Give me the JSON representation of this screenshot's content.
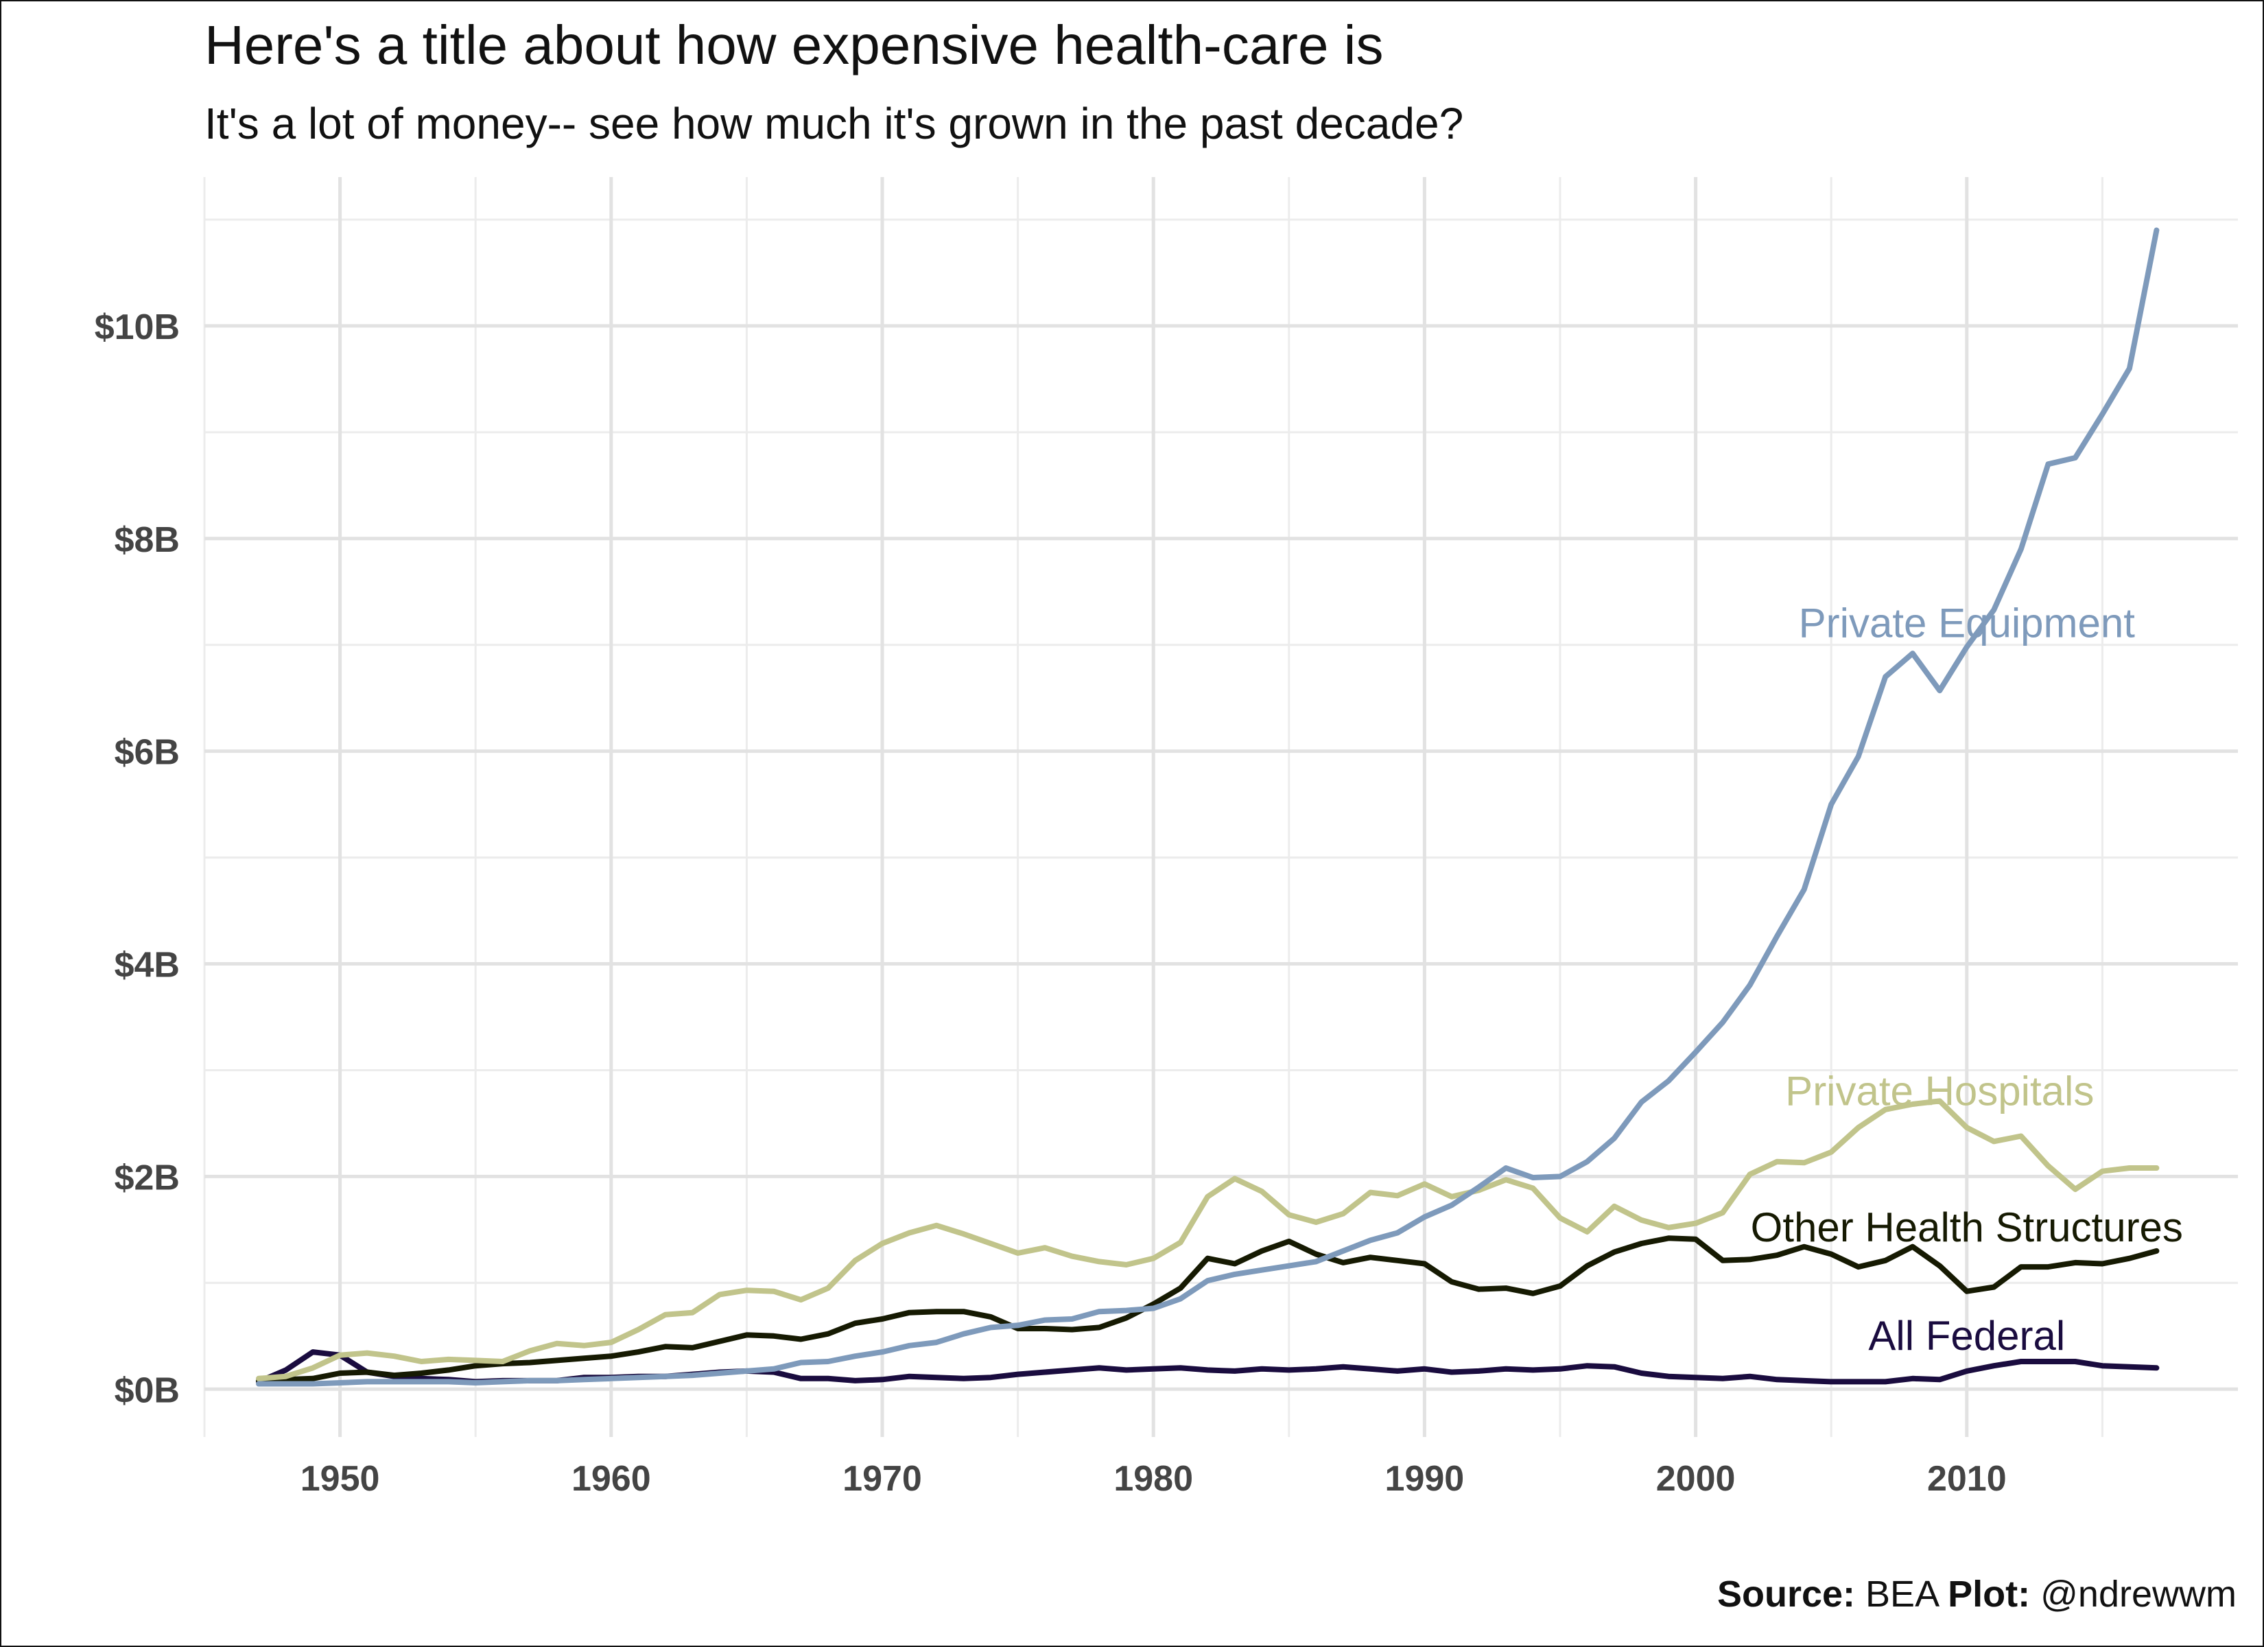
{
  "chart_data": {
    "type": "line",
    "title": "Here's a title about how expensive health-care is",
    "subtitle": "It's a lot of money-- see how much it's grown in the past decade?",
    "xlabel": "",
    "ylabel": "",
    "xlim": [
      1945,
      2020
    ],
    "ylim": [
      -0.45,
      11.4
    ],
    "x_ticks": [
      1950,
      1960,
      1970,
      1980,
      1990,
      2000,
      2010
    ],
    "y_ticks": [
      0,
      2,
      4,
      6,
      8,
      10
    ],
    "y_tick_labels": [
      "$0B",
      "$2B",
      "$4B",
      "$6B",
      "$8B",
      "$10B"
    ],
    "grid": true,
    "legend": "direct labels at line ends",
    "x": [
      1947,
      1948,
      1949,
      1950,
      1951,
      1952,
      1953,
      1954,
      1955,
      1956,
      1957,
      1958,
      1959,
      1960,
      1961,
      1962,
      1963,
      1964,
      1965,
      1966,
      1967,
      1968,
      1969,
      1970,
      1971,
      1972,
      1973,
      1974,
      1975,
      1976,
      1977,
      1978,
      1979,
      1980,
      1981,
      1982,
      1983,
      1984,
      1985,
      1986,
      1987,
      1988,
      1989,
      1990,
      1991,
      1992,
      1993,
      1994,
      1995,
      1996,
      1997,
      1998,
      1999,
      2000,
      2001,
      2002,
      2003,
      2004,
      2005,
      2006,
      2007,
      2008,
      2009,
      2010,
      2011,
      2012,
      2013,
      2014,
      2015,
      2016,
      2017
    ],
    "series": [
      {
        "name": "Private Equipment",
        "color": "#7e9abb",
        "label_year": 2010,
        "label_value": 7.2,
        "values": [
          0.05,
          0.05,
          0.05,
          0.06,
          0.07,
          0.07,
          0.07,
          0.07,
          0.06,
          0.07,
          0.08,
          0.08,
          0.09,
          0.1,
          0.11,
          0.12,
          0.13,
          0.15,
          0.17,
          0.19,
          0.25,
          0.26,
          0.31,
          0.35,
          0.41,
          0.44,
          0.52,
          0.58,
          0.6,
          0.65,
          0.66,
          0.73,
          0.74,
          0.76,
          0.85,
          1.02,
          1.08,
          1.12,
          1.16,
          1.2,
          1.3,
          1.4,
          1.47,
          1.62,
          1.73,
          1.9,
          2.08,
          1.99,
          2.0,
          2.14,
          2.36,
          2.7,
          2.9,
          3.17,
          3.45,
          3.8,
          4.26,
          4.7,
          5.5,
          5.95,
          6.7,
          6.92,
          6.57,
          6.98,
          7.33,
          7.9,
          8.7,
          8.76,
          9.17,
          9.6,
          10.9
        ]
      },
      {
        "name": "Private Hospitals",
        "color": "#c1c48b",
        "label_year": 2009,
        "label_value": 2.8,
        "values": [
          0.1,
          0.12,
          0.2,
          0.32,
          0.34,
          0.31,
          0.26,
          0.28,
          0.27,
          0.26,
          0.36,
          0.43,
          0.41,
          0.44,
          0.56,
          0.7,
          0.72,
          0.89,
          0.93,
          0.92,
          0.84,
          0.95,
          1.21,
          1.37,
          1.47,
          1.54,
          1.46,
          1.37,
          1.28,
          1.33,
          1.25,
          1.2,
          1.17,
          1.23,
          1.38,
          1.81,
          1.98,
          1.86,
          1.64,
          1.57,
          1.65,
          1.85,
          1.82,
          1.93,
          1.81,
          1.87,
          1.97,
          1.89,
          1.61,
          1.48,
          1.72,
          1.59,
          1.52,
          1.56,
          1.66,
          2.02,
          2.14,
          2.13,
          2.23,
          2.46,
          2.63,
          2.68,
          2.71,
          2.46,
          2.33,
          2.38,
          2.1,
          1.88,
          2.05,
          2.08,
          2.08
        ]
      },
      {
        "name": "Other Health Structures",
        "color": "#161a02",
        "label_year": 2010,
        "label_value": 1.52,
        "values": [
          0.08,
          0.09,
          0.1,
          0.15,
          0.16,
          0.13,
          0.15,
          0.18,
          0.22,
          0.24,
          0.25,
          0.27,
          0.29,
          0.31,
          0.35,
          0.4,
          0.39,
          0.45,
          0.51,
          0.5,
          0.47,
          0.52,
          0.62,
          0.66,
          0.72,
          0.73,
          0.73,
          0.68,
          0.57,
          0.57,
          0.56,
          0.58,
          0.67,
          0.8,
          0.95,
          1.23,
          1.18,
          1.3,
          1.39,
          1.27,
          1.19,
          1.24,
          1.21,
          1.18,
          1.01,
          0.94,
          0.95,
          0.9,
          0.97,
          1.16,
          1.29,
          1.37,
          1.42,
          1.41,
          1.21,
          1.22,
          1.26,
          1.34,
          1.27,
          1.15,
          1.21,
          1.34,
          1.16,
          0.92,
          0.96,
          1.15,
          1.15,
          1.19,
          1.18,
          1.23,
          1.3
        ]
      },
      {
        "name": "All Federal",
        "color": "#1a0c3f",
        "label_year": 2010,
        "label_value": 0.5,
        "values": [
          0.07,
          0.18,
          0.35,
          0.32,
          0.16,
          0.12,
          0.1,
          0.09,
          0.07,
          0.08,
          0.08,
          0.08,
          0.11,
          0.11,
          0.12,
          0.12,
          0.14,
          0.16,
          0.17,
          0.16,
          0.1,
          0.1,
          0.08,
          0.09,
          0.12,
          0.11,
          0.1,
          0.11,
          0.14,
          0.16,
          0.18,
          0.2,
          0.18,
          0.19,
          0.2,
          0.18,
          0.17,
          0.19,
          0.18,
          0.19,
          0.21,
          0.19,
          0.17,
          0.19,
          0.16,
          0.17,
          0.19,
          0.18,
          0.19,
          0.22,
          0.21,
          0.15,
          0.12,
          0.11,
          0.1,
          0.12,
          0.09,
          0.08,
          0.07,
          0.07,
          0.07,
          0.1,
          0.09,
          0.17,
          0.22,
          0.26,
          0.26,
          0.26,
          0.22,
          0.21,
          0.2
        ]
      }
    ]
  },
  "caption": {
    "source_label": "Source:",
    "source_value": " BEA ",
    "plot_label": "Plot:",
    "plot_value": " @ndrewwm"
  }
}
